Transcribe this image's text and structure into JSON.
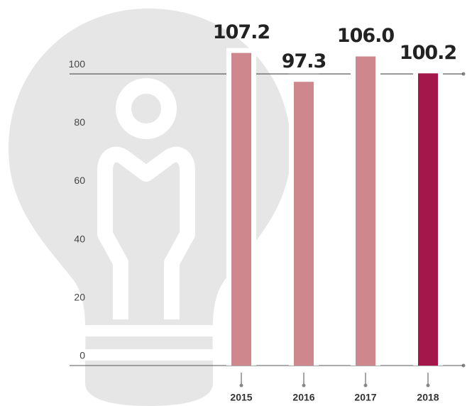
{
  "chart_data": {
    "type": "bar",
    "categories": [
      "2015",
      "2016",
      "2017",
      "2018"
    ],
    "values": [
      107.2,
      97.3,
      106.0,
      100.2
    ],
    "value_labels": [
      "107.2",
      "97.3",
      "106.0",
      "100.2"
    ],
    "colors": [
      "#cd878d",
      "#cd878d",
      "#cd878d",
      "#a3174a"
    ],
    "ylim": [
      0,
      120
    ],
    "yticks": [
      0,
      20,
      40,
      60,
      80,
      100
    ]
  }
}
